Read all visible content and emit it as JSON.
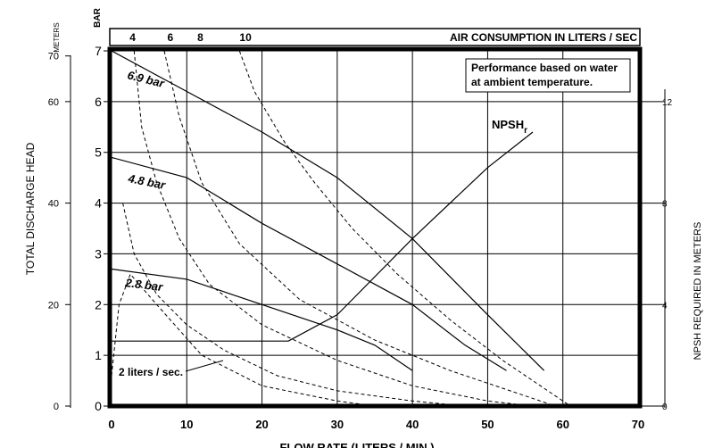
{
  "chart_data": {
    "type": "line",
    "title": "",
    "xlabel": "FLOW RATE (LITERS / MIN.)",
    "ylabel": "TOTAL DISCHARGE HEAD",
    "ylabel_units_meters": "METERS",
    "ylabel_units_bar": "BAR",
    "y2label": "NPSH REQUIRED IN METERS",
    "top_axis_label": "AIR CONSUMPTION IN LITERS / SEC",
    "note": "Performance based on water at ambient temperature.",
    "xlim": [
      0,
      70
    ],
    "ylim_bar": [
      0,
      7
    ],
    "x_ticks": [
      "0",
      "10",
      "20",
      "30",
      "40",
      "50",
      "60",
      "70"
    ],
    "bar_ticks": [
      "0",
      "1",
      "2",
      "3",
      "4",
      "5",
      "6",
      "7"
    ],
    "meter_ticks": [
      {
        "label": "0",
        "bar": 0
      },
      {
        "label": "20",
        "bar": 2
      },
      {
        "label": "40",
        "bar": 4
      },
      {
        "label": "60",
        "bar": 6
      },
      {
        "label": "70",
        "bar": 7
      }
    ],
    "npsh_ticks": [
      {
        "label": "0",
        "bar": 0
      },
      {
        "label": "4",
        "bar": 2
      },
      {
        "label": "8",
        "bar": 4
      },
      {
        "label": "12",
        "bar": 6
      }
    ],
    "air_ticks": [
      {
        "label": "4",
        "x": 1.5
      },
      {
        "label": "6",
        "x": 6.5
      },
      {
        "label": "8",
        "x": 10.5
      },
      {
        "label": "10",
        "x": 16.5
      }
    ],
    "grid": true,
    "performance_curves": [
      {
        "name": "6.9 bar",
        "points": [
          [
            0,
            7.0
          ],
          [
            10,
            6.2
          ],
          [
            20,
            5.4
          ],
          [
            30,
            4.5
          ],
          [
            40,
            3.3
          ],
          [
            50,
            1.8
          ],
          [
            57.5,
            0.7
          ]
        ]
      },
      {
        "name": "4.8 bar",
        "points": [
          [
            0,
            4.9
          ],
          [
            10,
            4.5
          ],
          [
            20,
            3.6
          ],
          [
            30,
            2.8
          ],
          [
            40,
            2.0
          ],
          [
            47,
            1.2
          ],
          [
            52.5,
            0.7
          ]
        ]
      },
      {
        "name": "2.8 bar",
        "points": [
          [
            0,
            2.7
          ],
          [
            10,
            2.5
          ],
          [
            20,
            2.0
          ],
          [
            30,
            1.5
          ],
          [
            35,
            1.2
          ],
          [
            40,
            0.7
          ]
        ]
      }
    ],
    "air_consumption_curves": [
      {
        "name": "2 liters / sec.",
        "points": [
          [
            0,
            0.6
          ],
          [
            1,
            2.0
          ],
          [
            2.5,
            2.6
          ],
          [
            6,
            2.0
          ],
          [
            12,
            1.0
          ],
          [
            20,
            0.4
          ],
          [
            30,
            0.1
          ],
          [
            35,
            0
          ]
        ]
      },
      {
        "points": [
          [
            1.5,
            4.0
          ],
          [
            3,
            3.0
          ],
          [
            6,
            2.2
          ],
          [
            10,
            1.6
          ],
          [
            15,
            1.1
          ],
          [
            22,
            0.6
          ],
          [
            30,
            0.3
          ],
          [
            40,
            0.1
          ],
          [
            47,
            0
          ]
        ]
      },
      {
        "points": [
          [
            3,
            7.0
          ],
          [
            4,
            5.5
          ],
          [
            6,
            4.4
          ],
          [
            9,
            3.3
          ],
          [
            13,
            2.4
          ],
          [
            20,
            1.6
          ],
          [
            30,
            0.9
          ],
          [
            40,
            0.4
          ],
          [
            50,
            0.1
          ],
          [
            56,
            0
          ]
        ]
      },
      {
        "points": [
          [
            7,
            7.0
          ],
          [
            9,
            5.7
          ],
          [
            12,
            4.4
          ],
          [
            17,
            3.2
          ],
          [
            25,
            2.1
          ],
          [
            35,
            1.3
          ],
          [
            45,
            0.7
          ],
          [
            55,
            0.2
          ],
          [
            59,
            0
          ]
        ]
      },
      {
        "points": [
          [
            17,
            7.0
          ],
          [
            19,
            6.2
          ],
          [
            23,
            5.2
          ],
          [
            27,
            4.4
          ],
          [
            32,
            3.5
          ],
          [
            38,
            2.6
          ],
          [
            45,
            1.7
          ],
          [
            52,
            0.9
          ],
          [
            60,
            0.1
          ],
          [
            61,
            0
          ]
        ]
      }
    ],
    "air_label": "2 liters / sec.",
    "npsh_curve": {
      "name": "NPSHr",
      "label_main": "NPSH",
      "label_sub": "r",
      "points": [
        [
          0,
          1.28
        ],
        [
          23.5,
          1.28
        ],
        [
          30,
          1.8
        ],
        [
          40,
          3.3
        ],
        [
          50,
          4.7
        ],
        [
          56,
          5.4
        ]
      ]
    }
  }
}
